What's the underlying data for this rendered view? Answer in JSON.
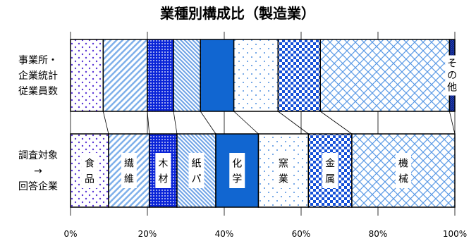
{
  "chart_data": {
    "type": "bar",
    "orientation": "horizontal",
    "stacked": "100%",
    "title": "業種別構成比（製造業）",
    "rows": [
      {
        "label_lines": [
          "事業所・",
          "企業統計",
          "従業員数"
        ]
      },
      {
        "label_lines": [
          "調査対象",
          "→",
          "回答企業"
        ]
      }
    ],
    "series": [
      {
        "name": "食品",
        "label_lines": [
          "食",
          "品"
        ],
        "values": [
          8.5,
          9.9
        ],
        "pattern": "dots-purple"
      },
      {
        "name": "繊維",
        "label_lines": [
          "繊",
          "維"
        ],
        "values": [
          11.5,
          10.6
        ],
        "pattern": "diag-light"
      },
      {
        "name": "木材",
        "label_lines": [
          "木",
          "材"
        ],
        "values": [
          6.8,
          7.2
        ],
        "pattern": "blue-dots-dense"
      },
      {
        "name": "紙パ",
        "label_lines": [
          "紙",
          "パ"
        ],
        "values": [
          7.0,
          10.1
        ],
        "pattern": "diag-dense"
      },
      {
        "name": "化学",
        "label_lines": [
          "化",
          "学"
        ],
        "values": [
          8.7,
          11.1
        ],
        "pattern": "solid-blue"
      },
      {
        "name": "窯業",
        "label_lines": [
          "窯",
          "業"
        ],
        "values": [
          11.5,
          13.0
        ],
        "pattern": "sparse-dots"
      },
      {
        "name": "金属",
        "label_lines": [
          "金",
          "属"
        ],
        "values": [
          11.0,
          11.3
        ],
        "pattern": "checker"
      },
      {
        "name": "機械",
        "label_lines": [
          "機",
          "械"
        ],
        "values": [
          33.6,
          26.8
        ],
        "pattern": "crosshatch"
      },
      {
        "name": "その他",
        "label_lines": [
          "そ",
          "の",
          "他"
        ],
        "values": [
          1.4,
          0.0
        ],
        "pattern": "navy-hatch"
      }
    ],
    "segment_labels_row": [
      1,
      0
    ],
    "xticks": [
      "0%",
      "20%",
      "40%",
      "60%",
      "80%",
      "100%"
    ],
    "xlim": [
      0,
      100
    ],
    "grid": true,
    "series_lines": true
  }
}
